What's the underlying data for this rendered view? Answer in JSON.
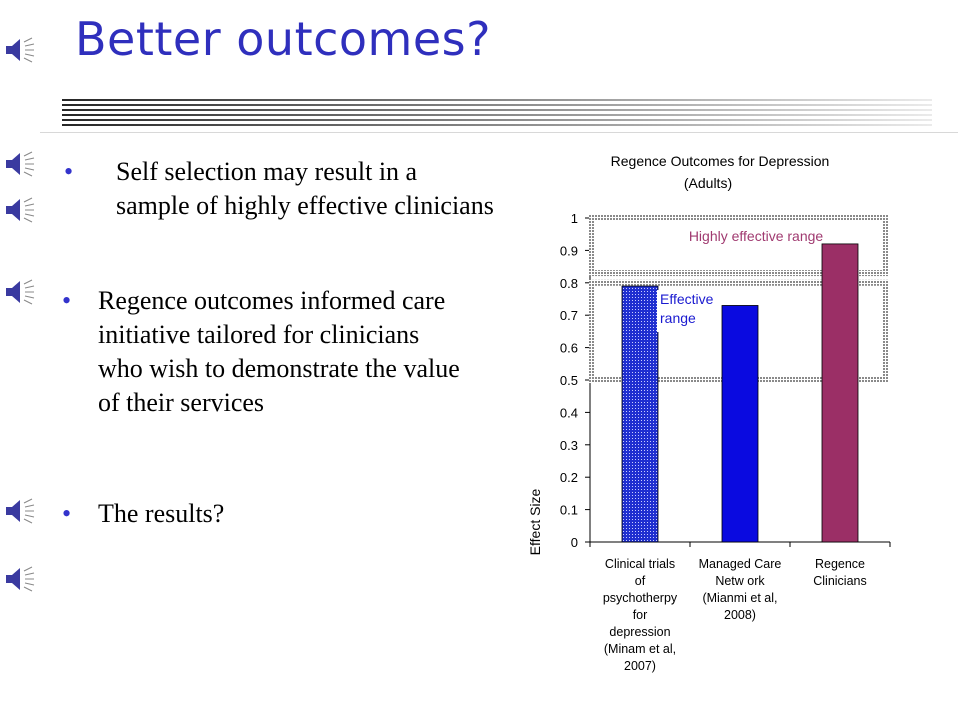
{
  "slide": {
    "title": "Better outcomes?",
    "bullets": [
      "Self selection may result in a sample of highly effective clinicians",
      "Regence outcomes informed care initiative tailored for clinicians who wish to demonstrate the value of their services",
      "The results?"
    ],
    "bullet_symbol": "•",
    "colors": {
      "title": "#2f2fbd",
      "bullet": "#3333cc"
    }
  },
  "chart_data": {
    "type": "bar",
    "title": "Regence Outcomes for Depression",
    "subtitle": "(Adults)",
    "ylabel": "Effect Size",
    "xlabel": "",
    "ylim": [
      0,
      1
    ],
    "yticks": [
      "0",
      "0.1",
      "0.2",
      "0.3",
      "0.4",
      "0.5",
      "0.6",
      "0.7",
      "0.8",
      "0.9",
      "1"
    ],
    "categories": [
      [
        "Clinical trials",
        "of",
        "psychotherpy",
        "for",
        "depression",
        "(Minam et al,",
        "2007)"
      ],
      [
        "Managed Care",
        "Netw ork",
        "(Mianmi et al,",
        "2008)"
      ],
      [
        "Regence",
        "Clinicians"
      ]
    ],
    "values": [
      0.79,
      0.73,
      0.92
    ],
    "bar_colors": [
      "#1f2fd0",
      "#0a0ae0",
      "#9b2f66"
    ],
    "grid": false,
    "annotations": [
      {
        "text": "Highly effective range",
        "range": [
          0.83,
          1.0
        ],
        "color": "#a03a70"
      },
      {
        "text_lines": [
          "Effective",
          "range"
        ],
        "range": [
          0.5,
          0.8
        ],
        "color": "#1a1ad0"
      }
    ]
  }
}
